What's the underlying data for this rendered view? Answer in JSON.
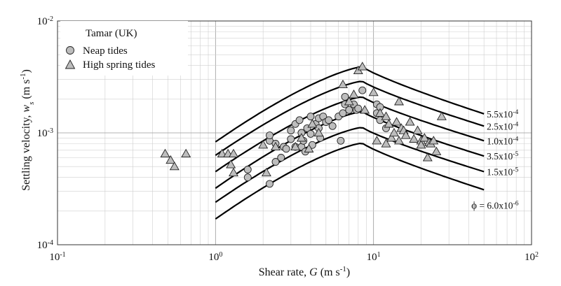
{
  "chart_data": {
    "type": "scatter",
    "xscale": "log",
    "yscale": "log",
    "xlim": [
      0.1,
      100
    ],
    "ylim": [
      0.0001,
      0.01
    ],
    "grid": true,
    "legend_placement": "top-left",
    "xlabel": "Shear rate, G (m s-1)",
    "xlabel_parts": [
      "Shear rate, ",
      "G",
      " (m s",
      "-1",
      ")"
    ],
    "ylabel": "Settling velocity, ws (m s-1)",
    "ylabel_parts": [
      "Settling velocity, ",
      "w",
      "s",
      " (m s",
      "-1",
      ")"
    ],
    "x_ticks": [
      {
        "value": 0.1,
        "base": "10",
        "exp": "-1"
      },
      {
        "value": 1,
        "base": "10",
        "exp": "0"
      },
      {
        "value": 10,
        "base": "10",
        "exp": "1"
      },
      {
        "value": 100,
        "base": "10",
        "exp": "2"
      }
    ],
    "y_ticks": [
      {
        "value": 0.0001,
        "base": "10",
        "exp": "-4"
      },
      {
        "value": 0.001,
        "base": "10",
        "exp": "-3"
      },
      {
        "value": 0.01,
        "base": "10",
        "exp": "-2"
      }
    ],
    "legend": {
      "title": "Tamar (UK)",
      "entries": [
        {
          "label": "Neap tides",
          "marker": "circle"
        },
        {
          "label": "High spring tides",
          "marker": "triangle"
        }
      ]
    },
    "curves": [
      {
        "label": "5.5x10",
        "exp": "-4",
        "prefix": "",
        "points": [
          [
            1,
            0.00083
          ],
          [
            8.5,
            0.0039
          ],
          [
            50,
            0.00148
          ]
        ]
      },
      {
        "label": "2.5x10",
        "exp": "-4",
        "prefix": "",
        "points": [
          [
            1,
            0.00063
          ],
          [
            8.5,
            0.0029
          ],
          [
            50,
            0.00115
          ]
        ]
      },
      {
        "label": "1.0x10",
        "exp": "-4",
        "prefix": "",
        "points": [
          [
            1,
            0.00045
          ],
          [
            8.5,
            0.0021
          ],
          [
            50,
            0.00085
          ]
        ]
      },
      {
        "label": "3.5x10",
        "exp": "-5",
        "prefix": "",
        "points": [
          [
            1,
            0.00032
          ],
          [
            8.5,
            0.00155
          ],
          [
            50,
            0.00062
          ]
        ]
      },
      {
        "label": "1.5x10",
        "exp": "-5",
        "prefix": "",
        "points": [
          [
            1,
            0.00024
          ],
          [
            8.5,
            0.00112
          ],
          [
            50,
            0.00045
          ]
        ]
      },
      {
        "label": " = 6.0x10",
        "exp": "-6",
        "prefix": "ϕ",
        "points": [
          [
            1,
            0.00017
          ],
          [
            8.5,
            0.00081
          ],
          [
            50,
            0.00031
          ]
        ]
      }
    ],
    "series": [
      {
        "name": "Neap tides",
        "marker": "circle",
        "points": [
          [
            1.6,
            0.00047
          ],
          [
            1.6,
            0.0004
          ],
          [
            2.2,
            0.00035
          ],
          [
            2.2,
            0.00085
          ],
          [
            2.2,
            0.00095
          ],
          [
            2.4,
            0.0008
          ],
          [
            2.4,
            0.00055
          ],
          [
            2.6,
            0.0006
          ],
          [
            2.7,
            0.00075
          ],
          [
            2.8,
            0.00072
          ],
          [
            3.0,
            0.00105
          ],
          [
            3.0,
            0.00088
          ],
          [
            3.2,
            0.0012
          ],
          [
            3.2,
            0.00075
          ],
          [
            3.4,
            0.0013
          ],
          [
            3.5,
            0.001
          ],
          [
            3.5,
            0.00075
          ],
          [
            3.6,
            0.00085
          ],
          [
            3.7,
            0.00068
          ],
          [
            3.8,
            0.0011
          ],
          [
            4.0,
            0.0014
          ],
          [
            4.0,
            0.00098
          ],
          [
            4.1,
            0.00078
          ],
          [
            4.3,
            0.0012
          ],
          [
            4.5,
            0.0011
          ],
          [
            4.5,
            0.00135
          ],
          [
            4.6,
            0.0009
          ],
          [
            4.8,
            0.0014
          ],
          [
            5.0,
            0.00125
          ],
          [
            5.2,
            0.0013
          ],
          [
            5.5,
            0.00115
          ],
          [
            6.0,
            0.0014
          ],
          [
            6.2,
            0.00085
          ],
          [
            6.4,
            0.0015
          ],
          [
            6.6,
            0.0018
          ],
          [
            6.6,
            0.0021
          ],
          [
            7.0,
            0.0016
          ],
          [
            7.5,
            0.0018
          ],
          [
            7.8,
            0.0016
          ],
          [
            8.0,
            0.00165
          ],
          [
            8.5,
            0.0024
          ],
          [
            10.5,
            0.0018
          ],
          [
            10.5,
            0.0015
          ],
          [
            11,
            0.0017
          ],
          [
            11,
            0.0013
          ],
          [
            12,
            0.0011
          ]
        ]
      },
      {
        "name": "High spring tides",
        "marker": "triangle",
        "points": [
          [
            0.48,
            0.00065
          ],
          [
            0.52,
            0.00057
          ],
          [
            0.55,
            0.0005
          ],
          [
            0.65,
            0.00065
          ],
          [
            1.1,
            0.00065
          ],
          [
            1.2,
            0.00065
          ],
          [
            1.25,
            0.00052
          ],
          [
            1.3,
            0.00065
          ],
          [
            1.3,
            0.00044
          ],
          [
            2.0,
            0.00078
          ],
          [
            2.1,
            0.00044
          ],
          [
            2.4,
            0.00075
          ],
          [
            3.2,
            0.00075
          ],
          [
            3.5,
            0.0009
          ],
          [
            3.9,
            0.00072
          ],
          [
            4.1,
            0.0012
          ],
          [
            4.5,
            0.001
          ],
          [
            6.4,
            0.0027
          ],
          [
            7.0,
            0.0019
          ],
          [
            7.5,
            0.0022
          ],
          [
            8.0,
            0.0036
          ],
          [
            8.5,
            0.0039
          ],
          [
            8.8,
            0.0016
          ],
          [
            10,
            0.0023
          ],
          [
            10.5,
            0.00085
          ],
          [
            11,
            0.0015
          ],
          [
            12,
            0.0014
          ],
          [
            12,
            0.0008
          ],
          [
            12.5,
            0.0012
          ],
          [
            13,
            0.0009
          ],
          [
            13.5,
            0.001
          ],
          [
            14,
            0.00125
          ],
          [
            14.5,
            0.0019
          ],
          [
            14.5,
            0.00085
          ],
          [
            15,
            0.0011
          ],
          [
            15.5,
            0.00105
          ],
          [
            16,
            0.00095
          ],
          [
            17,
            0.00125
          ],
          [
            18,
            0.00088
          ],
          [
            19,
            0.00105
          ],
          [
            20,
            0.00085
          ],
          [
            20,
            0.00078
          ],
          [
            21,
            0.0009
          ],
          [
            22,
            0.0006
          ],
          [
            22.5,
            0.00082
          ],
          [
            23,
            0.0008
          ],
          [
            24,
            0.00085
          ],
          [
            25,
            0.00068
          ],
          [
            27,
            0.0014
          ]
        ]
      }
    ]
  }
}
